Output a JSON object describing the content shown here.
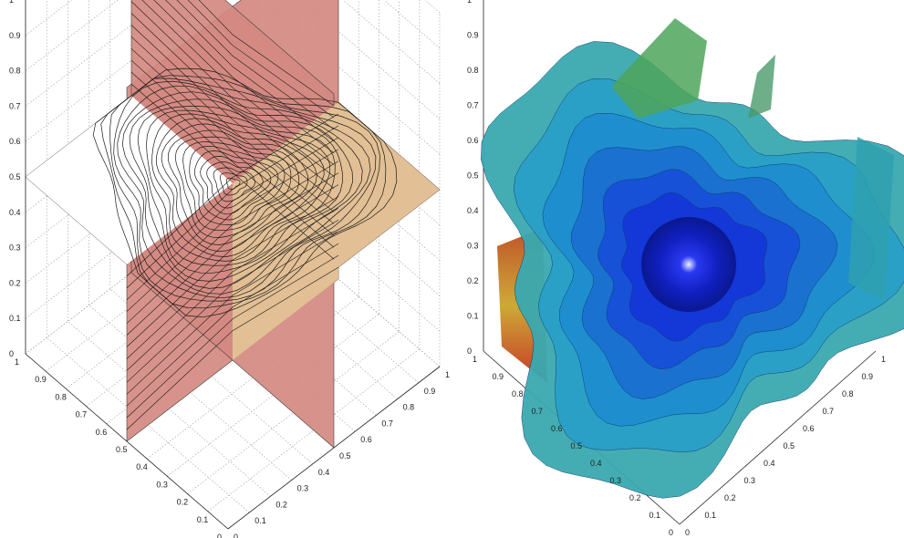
{
  "figure": {
    "left_panel": {
      "kind": "3D slice planes with contour lines",
      "axis_z_ticks": [
        "0",
        "0.1",
        "0.2",
        "0.3",
        "0.4",
        "0.5",
        "0.6",
        "0.7",
        "0.8",
        "0.9",
        "1"
      ],
      "axis_left_ticks": [
        "0",
        "0.1",
        "0.2",
        "0.3",
        "0.4",
        "0.5",
        "0.6",
        "0.7",
        "0.8",
        "0.9",
        "1"
      ],
      "axis_right_ticks": [
        "0",
        "0.1",
        "0.2",
        "0.3",
        "0.4",
        "0.5",
        "0.6",
        "0.7",
        "0.8",
        "0.9",
        "1"
      ],
      "colors": {
        "slice_pink": "#d48a82",
        "slice_tan": "#e2bf94",
        "contour": "#1a1a1a"
      }
    },
    "right_panel": {
      "kind": "3D colored isosurfaces",
      "axis_z_ticks": [
        "0",
        "0.1",
        "0.2",
        "0.3",
        "0.4",
        "0.5",
        "0.6",
        "0.7",
        "0.8",
        "0.9",
        "1"
      ],
      "axis_left_ticks": [
        "0",
        "0.1",
        "0.2",
        "0.3",
        "0.4",
        "0.5",
        "0.6",
        "0.7",
        "0.8",
        "0.9",
        "1"
      ],
      "axis_right_ticks": [
        "0",
        "0.1",
        "0.2",
        "0.3",
        "0.4",
        "0.5",
        "0.6",
        "0.7",
        "0.8",
        "0.9",
        "1"
      ],
      "colors": {
        "core": "#1020d0",
        "mid": "#1a8fd0",
        "outer": "#2ab0b8",
        "warm": "#c8a020",
        "hot": "#c02010"
      }
    }
  }
}
